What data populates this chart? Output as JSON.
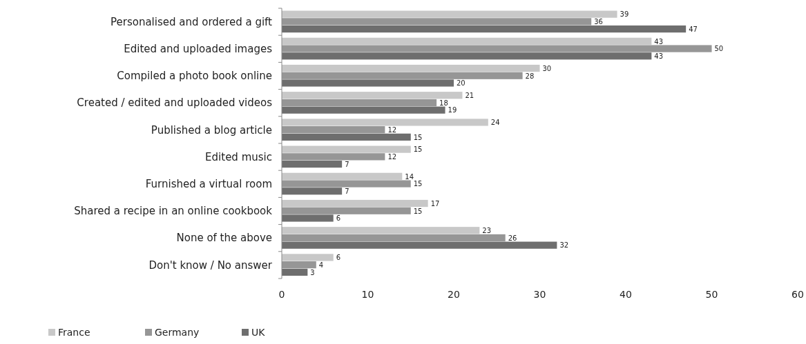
{
  "chart_data": {
    "type": "bar",
    "orientation": "horizontal",
    "categories": [
      "Personalised and ordered a gift",
      "Edited and uploaded images",
      "Compiled a photo book online",
      "Created / edited and uploaded videos",
      "Published a blog article",
      "Edited music",
      "Furnished a virtual room",
      "Shared a recipe in an online cookbook",
      "None of the above",
      "Don't know / No answer"
    ],
    "series": [
      {
        "name": "France",
        "color": "#c8c8c8",
        "values": [
          39,
          43,
          30,
          21,
          24,
          15,
          14,
          17,
          23,
          6
        ]
      },
      {
        "name": "Germany",
        "color": "#969696",
        "values": [
          36,
          50,
          28,
          18,
          12,
          12,
          15,
          15,
          26,
          4
        ]
      },
      {
        "name": "UK",
        "color": "#6e6e6e",
        "values": [
          47,
          43,
          20,
          19,
          15,
          7,
          7,
          6,
          32,
          3
        ]
      }
    ],
    "xlim": [
      0,
      60
    ],
    "xticks": [
      0,
      10,
      20,
      30,
      40,
      50,
      60
    ],
    "data_labels": true,
    "legend": "bottom left",
    "grid": false
  }
}
